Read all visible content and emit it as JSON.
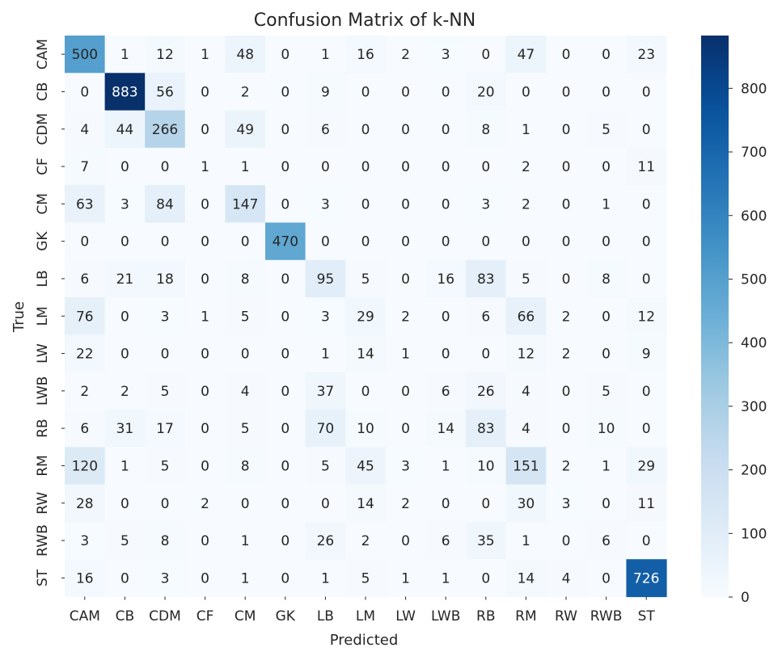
{
  "chart_data": {
    "type": "heatmap",
    "title": "Confusion Matrix of k-NN",
    "xlabel": "Predicted",
    "ylabel": "True",
    "x_labels": [
      "CAM",
      "CB",
      "CDM",
      "CF",
      "CM",
      "GK",
      "LB",
      "LM",
      "LW",
      "LWB",
      "RB",
      "RM",
      "RW",
      "RWB",
      "ST"
    ],
    "y_labels": [
      "CAM",
      "CB",
      "CDM",
      "CF",
      "CM",
      "GK",
      "LB",
      "LM",
      "LW",
      "LWB",
      "RB",
      "RM",
      "RW",
      "RWB",
      "ST"
    ],
    "matrix": [
      [
        500,
        1,
        12,
        1,
        48,
        0,
        1,
        16,
        2,
        3,
        0,
        47,
        0,
        0,
        23
      ],
      [
        0,
        883,
        56,
        0,
        2,
        0,
        9,
        0,
        0,
        0,
        20,
        0,
        0,
        0,
        0
      ],
      [
        4,
        44,
        266,
        0,
        49,
        0,
        6,
        0,
        0,
        0,
        8,
        1,
        0,
        5,
        0
      ],
      [
        7,
        0,
        0,
        1,
        1,
        0,
        0,
        0,
        0,
        0,
        0,
        2,
        0,
        0,
        11
      ],
      [
        63,
        3,
        84,
        0,
        147,
        0,
        3,
        0,
        0,
        0,
        3,
        2,
        0,
        1,
        0
      ],
      [
        0,
        0,
        0,
        0,
        0,
        470,
        0,
        0,
        0,
        0,
        0,
        0,
        0,
        0,
        0
      ],
      [
        6,
        21,
        18,
        0,
        8,
        0,
        95,
        5,
        0,
        16,
        83,
        5,
        0,
        8,
        0
      ],
      [
        76,
        0,
        3,
        1,
        5,
        0,
        3,
        29,
        2,
        0,
        6,
        66,
        2,
        0,
        12
      ],
      [
        22,
        0,
        0,
        0,
        0,
        0,
        1,
        14,
        1,
        0,
        0,
        12,
        2,
        0,
        9
      ],
      [
        2,
        2,
        5,
        0,
        4,
        0,
        37,
        0,
        0,
        6,
        26,
        4,
        0,
        5,
        0
      ],
      [
        6,
        31,
        17,
        0,
        5,
        0,
        70,
        10,
        0,
        14,
        83,
        4,
        0,
        10,
        0
      ],
      [
        120,
        1,
        5,
        0,
        8,
        0,
        5,
        45,
        3,
        1,
        10,
        151,
        2,
        1,
        29
      ],
      [
        28,
        0,
        0,
        2,
        0,
        0,
        0,
        14,
        2,
        0,
        0,
        30,
        3,
        0,
        11
      ],
      [
        3,
        5,
        8,
        0,
        1,
        0,
        26,
        2,
        0,
        6,
        35,
        1,
        0,
        6,
        0
      ],
      [
        16,
        0,
        3,
        0,
        1,
        0,
        1,
        5,
        1,
        1,
        0,
        14,
        4,
        0,
        726
      ]
    ],
    "colorbar": {
      "min": 0,
      "max": 883,
      "ticks": [
        0,
        100,
        200,
        300,
        400,
        500,
        600,
        700,
        800
      ],
      "colormap": "Blues"
    },
    "annotations": true,
    "grid": false
  }
}
